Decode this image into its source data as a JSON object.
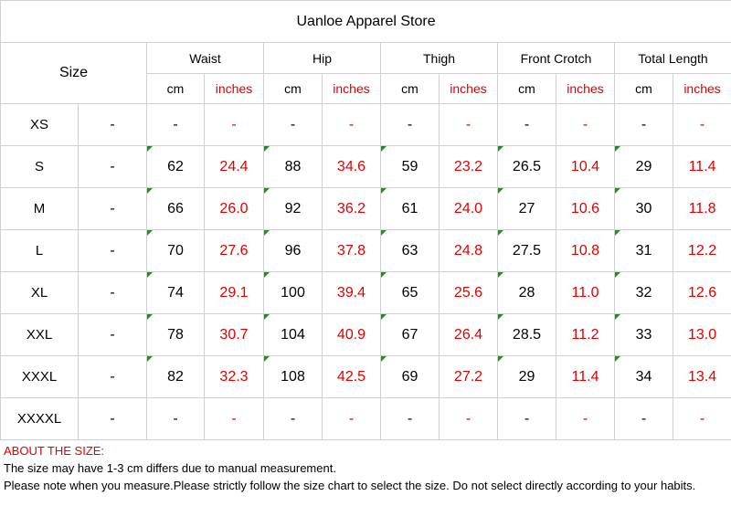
{
  "title": "Uanloe Apparel Store",
  "size_label": "Size",
  "measurements": [
    {
      "name": "Waist"
    },
    {
      "name": "Hip"
    },
    {
      "name": "Thigh"
    },
    {
      "name": "Front Crotch"
    },
    {
      "name": "Total Length"
    }
  ],
  "unit_cm": "cm",
  "unit_in": "inches",
  "rows": [
    {
      "size": "XS",
      "col2": "-",
      "values": [
        "-",
        "-",
        "-",
        "-",
        "-",
        "-",
        "-",
        "-",
        "-",
        "-"
      ]
    },
    {
      "size": "S",
      "col2": "-",
      "values": [
        "62",
        "24.4",
        "88",
        "34.6",
        "59",
        "23.2",
        "26.5",
        "10.4",
        "29",
        "11.4"
      ]
    },
    {
      "size": "M",
      "col2": "-",
      "values": [
        "66",
        "26.0",
        "92",
        "36.2",
        "61",
        "24.0",
        "27",
        "10.6",
        "30",
        "11.8"
      ]
    },
    {
      "size": "L",
      "col2": "-",
      "values": [
        "70",
        "27.6",
        "96",
        "37.8",
        "63",
        "24.8",
        "27.5",
        "10.8",
        "31",
        "12.2"
      ]
    },
    {
      "size": "XL",
      "col2": "-",
      "values": [
        "74",
        "29.1",
        "100",
        "39.4",
        "65",
        "25.6",
        "28",
        "11.0",
        "32",
        "12.6"
      ]
    },
    {
      "size": "XXL",
      "col2": "-",
      "values": [
        "78",
        "30.7",
        "104",
        "40.9",
        "67",
        "26.4",
        "28.5",
        "11.2",
        "33",
        "13.0"
      ]
    },
    {
      "size": "XXXL",
      "col2": "-",
      "values": [
        "82",
        "32.3",
        "108",
        "42.5",
        "69",
        "27.2",
        "29",
        "11.4",
        "34",
        "13.4"
      ]
    },
    {
      "size": "XXXXL",
      "col2": "-",
      "values": [
        "-",
        "-",
        "-",
        "-",
        "-",
        "-",
        "-",
        "-",
        "-",
        "-"
      ]
    }
  ],
  "notes": {
    "heading": "ABOUT THE SIZE:",
    "line1": "The size may have 1-3 cm differs due to manual measurement.",
    "line2": "Please note when you measure.Please strictly follow the size chart  to select the size. Do not select directly according to your habits."
  },
  "colors": {
    "inches": "#e00000",
    "marker": "#1a8f1a",
    "border": "#cfcfcf"
  }
}
